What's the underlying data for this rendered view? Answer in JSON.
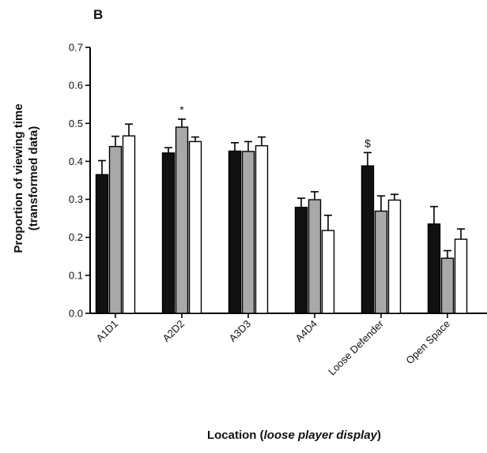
{
  "chart_data": {
    "type": "bar",
    "panel_label": "B",
    "title": "",
    "ylabel_line1": "Proportion of viewing time",
    "ylabel_line2": "(transformed data)",
    "xlabel_prefix": "Location (",
    "xlabel_italic": "loose player display",
    "xlabel_suffix": ")",
    "ylim": [
      0,
      0.7
    ],
    "yticks": [
      "0.0",
      "0.1",
      "0.2",
      "0.3",
      "0.4",
      "0.5",
      "0.6",
      "0.7"
    ],
    "categories": [
      "A1D1",
      "A2D2",
      "A3D3",
      "A4D4",
      "Loose Defender",
      "Open Space"
    ],
    "grid": false,
    "legend": "none",
    "series": [
      {
        "color": "#111111",
        "values": [
          0.365,
          0.422,
          0.427,
          0.279,
          0.388,
          0.235
        ],
        "errors": [
          0.037,
          0.014,
          0.022,
          0.024,
          0.035,
          0.046
        ]
      },
      {
        "color": "#a9a9a9",
        "values": [
          0.439,
          0.49,
          0.426,
          0.299,
          0.269,
          0.145
        ],
        "errors": [
          0.027,
          0.021,
          0.026,
          0.021,
          0.04,
          0.02
        ]
      },
      {
        "color": "#ffffff",
        "values": [
          0.467,
          0.452,
          0.441,
          0.218,
          0.298,
          0.195
        ],
        "errors": [
          0.031,
          0.012,
          0.023,
          0.04,
          0.015,
          0.027
        ]
      }
    ],
    "annotations": [
      {
        "text": "*",
        "category_index": 1,
        "series_index": 1
      },
      {
        "text": "$",
        "category_index": 4,
        "series_index": 0
      }
    ]
  }
}
